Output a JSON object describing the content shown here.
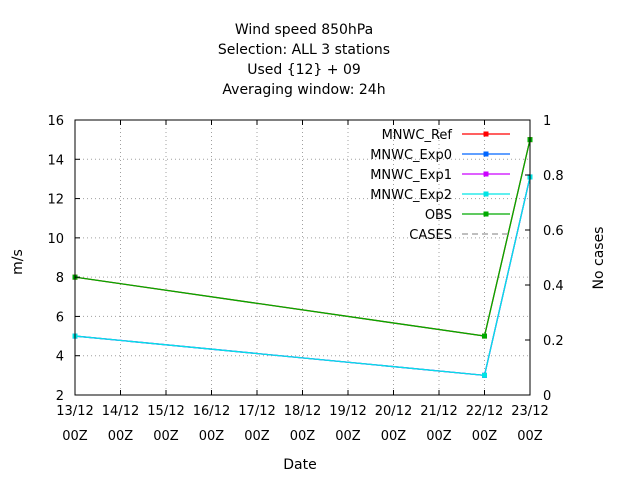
{
  "chart_data": {
    "type": "line",
    "title_lines": [
      "Wind speed 850hPa",
      "Selection: ALL      3 stations",
      "Used {12} + 09",
      "Averaging window: 24h"
    ],
    "xlabel": "Date",
    "ylabel": "m/s",
    "y2label": "No cases",
    "x_ticks": [
      [
        "13/12",
        "00Z"
      ],
      [
        "14/12",
        "00Z"
      ],
      [
        "15/12",
        "00Z"
      ],
      [
        "16/12",
        "00Z"
      ],
      [
        "17/12",
        "00Z"
      ],
      [
        "18/12",
        "00Z"
      ],
      [
        "19/12",
        "00Z"
      ],
      [
        "20/12",
        "00Z"
      ],
      [
        "21/12",
        "00Z"
      ],
      [
        "22/12",
        "00Z"
      ],
      [
        "23/12",
        "00Z"
      ]
    ],
    "x_range": [
      0,
      10
    ],
    "y_range": [
      2,
      16
    ],
    "y_ticks": [
      2,
      4,
      6,
      8,
      10,
      12,
      14,
      16
    ],
    "y2_range": [
      0,
      1
    ],
    "y2_ticks": [
      "0",
      "0.2",
      "0.4",
      "0.6",
      "0.8",
      "1"
    ],
    "grid": true,
    "legend_position": "top-right",
    "series": [
      {
        "name": "MNWC_Ref",
        "color": "#ff0000",
        "style": "solid-points",
        "x": [
          0,
          9,
          10
        ],
        "y": [
          8.0,
          5.0,
          15.0
        ]
      },
      {
        "name": "MNWC_Exp0",
        "color": "#0066ff",
        "style": "solid-points",
        "x": [
          0,
          9,
          10
        ],
        "y": [
          5.0,
          3.0,
          13.1
        ]
      },
      {
        "name": "MNWC_Exp1",
        "color": "#cc00ff",
        "style": "solid-points",
        "x": [
          0,
          9,
          10
        ],
        "y": [
          5.0,
          3.0,
          13.1
        ]
      },
      {
        "name": "MNWC_Exp2",
        "color": "#00e5e5",
        "style": "solid-points",
        "x": [
          0,
          9,
          10
        ],
        "y": [
          5.0,
          3.0,
          13.1
        ]
      },
      {
        "name": "OBS",
        "color": "#00aa00",
        "style": "solid-points",
        "x": [
          0,
          9,
          10
        ],
        "y": [
          8.0,
          5.0,
          15.0
        ]
      },
      {
        "name": "CASES",
        "color": "#999999",
        "style": "dashed",
        "x": [],
        "y": []
      }
    ]
  }
}
